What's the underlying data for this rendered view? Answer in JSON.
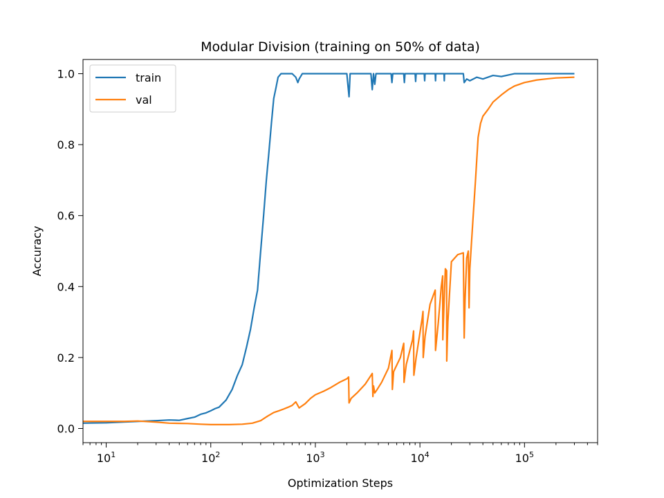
{
  "chart_data": {
    "type": "line",
    "title": "Modular Division (training on 50% of data)",
    "xlabel": "Optimization Steps",
    "ylabel": "Accuracy",
    "xscale": "log",
    "xlim": [
      6,
      500000
    ],
    "ylim": [
      -0.04,
      1.04
    ],
    "grid": false,
    "legend_position": "top-left",
    "xticks": [
      {
        "value": 10,
        "base": "10",
        "exp": "1"
      },
      {
        "value": 100,
        "base": "10",
        "exp": "2"
      },
      {
        "value": 1000,
        "base": "10",
        "exp": "3"
      },
      {
        "value": 10000,
        "base": "10",
        "exp": "4"
      },
      {
        "value": 100000,
        "base": "10",
        "exp": "5"
      }
    ],
    "yticks": [
      {
        "value": 0.0,
        "label": "0.0"
      },
      {
        "value": 0.2,
        "label": "0.2"
      },
      {
        "value": 0.4,
        "label": "0.4"
      },
      {
        "value": 0.6,
        "label": "0.6"
      },
      {
        "value": 0.8,
        "label": "0.8"
      },
      {
        "value": 1.0,
        "label": "1.0"
      }
    ],
    "series": [
      {
        "name": "train",
        "color": "#1f77b4",
        "points": [
          [
            6,
            0.015
          ],
          [
            10,
            0.016
          ],
          [
            20,
            0.02
          ],
          [
            30,
            0.022
          ],
          [
            40,
            0.024
          ],
          [
            50,
            0.023
          ],
          [
            60,
            0.028
          ],
          [
            70,
            0.032
          ],
          [
            80,
            0.04
          ],
          [
            90,
            0.044
          ],
          [
            100,
            0.05
          ],
          [
            110,
            0.056
          ],
          [
            120,
            0.06
          ],
          [
            140,
            0.08
          ],
          [
            160,
            0.11
          ],
          [
            180,
            0.15
          ],
          [
            200,
            0.18
          ],
          [
            220,
            0.23
          ],
          [
            240,
            0.28
          ],
          [
            260,
            0.34
          ],
          [
            280,
            0.39
          ],
          [
            300,
            0.5
          ],
          [
            320,
            0.6
          ],
          [
            340,
            0.7
          ],
          [
            360,
            0.78
          ],
          [
            380,
            0.86
          ],
          [
            400,
            0.93
          ],
          [
            420,
            0.96
          ],
          [
            440,
            0.99
          ],
          [
            470,
            1.0
          ],
          [
            600,
            1.0
          ],
          [
            650,
            0.99
          ],
          [
            680,
            0.975
          ],
          [
            700,
            0.985
          ],
          [
            750,
            1.0
          ],
          [
            2000,
            1.0
          ],
          [
            2100,
            0.935
          ],
          [
            2150,
            1.0
          ],
          [
            3400,
            1.0
          ],
          [
            3500,
            0.955
          ],
          [
            3600,
            1.0
          ],
          [
            3700,
            0.97
          ],
          [
            3800,
            1.0
          ],
          [
            5300,
            1.0
          ],
          [
            5400,
            0.975
          ],
          [
            5500,
            1.0
          ],
          [
            7000,
            1.0
          ],
          [
            7100,
            0.975
          ],
          [
            7200,
            1.0
          ],
          [
            9000,
            1.0
          ],
          [
            9100,
            0.978
          ],
          [
            9200,
            1.0
          ],
          [
            11000,
            1.0
          ],
          [
            11100,
            0.98
          ],
          [
            11200,
            1.0
          ],
          [
            14000,
            1.0
          ],
          [
            14100,
            0.98
          ],
          [
            14200,
            1.0
          ],
          [
            17000,
            1.0
          ],
          [
            17100,
            0.98
          ],
          [
            17200,
            1.0
          ],
          [
            26000,
            1.0
          ],
          [
            26500,
            0.975
          ],
          [
            28000,
            0.985
          ],
          [
            30000,
            0.98
          ],
          [
            35000,
            0.99
          ],
          [
            40000,
            0.985
          ],
          [
            50000,
            0.995
          ],
          [
            60000,
            0.992
          ],
          [
            80000,
            1.0
          ],
          [
            300000,
            1.0
          ]
        ]
      },
      {
        "name": "val",
        "color": "#ff7f0e",
        "points": [
          [
            6,
            0.02
          ],
          [
            10,
            0.02
          ],
          [
            15,
            0.02
          ],
          [
            20,
            0.021
          ],
          [
            30,
            0.018
          ],
          [
            40,
            0.015
          ],
          [
            60,
            0.014
          ],
          [
            80,
            0.012
          ],
          [
            100,
            0.011
          ],
          [
            150,
            0.011
          ],
          [
            200,
            0.012
          ],
          [
            250,
            0.015
          ],
          [
            300,
            0.022
          ],
          [
            350,
            0.035
          ],
          [
            400,
            0.045
          ],
          [
            450,
            0.05
          ],
          [
            500,
            0.055
          ],
          [
            550,
            0.06
          ],
          [
            600,
            0.065
          ],
          [
            650,
            0.075
          ],
          [
            700,
            0.058
          ],
          [
            800,
            0.07
          ],
          [
            900,
            0.085
          ],
          [
            1000,
            0.095
          ],
          [
            1200,
            0.105
          ],
          [
            1400,
            0.115
          ],
          [
            1700,
            0.13
          ],
          [
            2000,
            0.14
          ],
          [
            2080,
            0.145
          ],
          [
            2100,
            0.072
          ],
          [
            2200,
            0.085
          ],
          [
            2500,
            0.1
          ],
          [
            3000,
            0.125
          ],
          [
            3500,
            0.155
          ],
          [
            3550,
            0.09
          ],
          [
            3600,
            0.12
          ],
          [
            3700,
            0.1
          ],
          [
            3900,
            0.11
          ],
          [
            4300,
            0.13
          ],
          [
            5000,
            0.17
          ],
          [
            5400,
            0.22
          ],
          [
            5450,
            0.11
          ],
          [
            5600,
            0.16
          ],
          [
            6500,
            0.2
          ],
          [
            7000,
            0.24
          ],
          [
            7050,
            0.13
          ],
          [
            7400,
            0.18
          ],
          [
            8500,
            0.25
          ],
          [
            8700,
            0.275
          ],
          [
            8750,
            0.15
          ],
          [
            9200,
            0.2
          ],
          [
            10500,
            0.31
          ],
          [
            10700,
            0.33
          ],
          [
            10750,
            0.2
          ],
          [
            11200,
            0.26
          ],
          [
            12500,
            0.35
          ],
          [
            14000,
            0.39
          ],
          [
            14100,
            0.22
          ],
          [
            15000,
            0.3
          ],
          [
            16000,
            0.4
          ],
          [
            16500,
            0.43
          ],
          [
            16550,
            0.25
          ],
          [
            17000,
            0.35
          ],
          [
            17500,
            0.45
          ],
          [
            18000,
            0.445
          ],
          [
            18050,
            0.19
          ],
          [
            18500,
            0.3
          ],
          [
            20000,
            0.47
          ],
          [
            23000,
            0.49
          ],
          [
            26000,
            0.495
          ],
          [
            26500,
            0.255
          ],
          [
            27000,
            0.36
          ],
          [
            28000,
            0.48
          ],
          [
            29000,
            0.5
          ],
          [
            29500,
            0.34
          ],
          [
            30000,
            0.45
          ],
          [
            32000,
            0.58
          ],
          [
            34000,
            0.7
          ],
          [
            36000,
            0.82
          ],
          [
            38000,
            0.86
          ],
          [
            40000,
            0.88
          ],
          [
            45000,
            0.9
          ],
          [
            50000,
            0.92
          ],
          [
            60000,
            0.94
          ],
          [
            70000,
            0.955
          ],
          [
            80000,
            0.965
          ],
          [
            100000,
            0.975
          ],
          [
            130000,
            0.982
          ],
          [
            160000,
            0.985
          ],
          [
            200000,
            0.988
          ],
          [
            300000,
            0.99
          ]
        ]
      }
    ]
  }
}
